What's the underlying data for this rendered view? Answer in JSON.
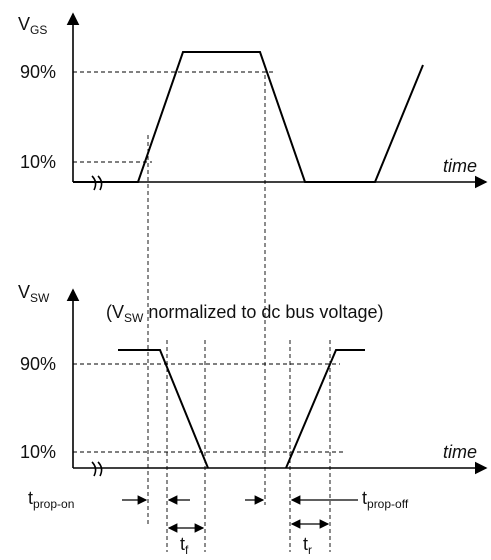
{
  "top_plot": {
    "y_label": {
      "main": "V",
      "sub": "GS"
    },
    "levels": [
      "90%",
      "10%"
    ],
    "x_label": "time"
  },
  "bottom_plot": {
    "y_label": {
      "main": "V",
      "sub": "SW"
    },
    "note": {
      "open": "(V",
      "sub": "SW",
      "rest": " normalized to dc bus voltage)"
    },
    "levels": [
      "90%",
      "10%"
    ],
    "x_label": "time"
  },
  "intervals": [
    {
      "main": "t",
      "sub": "prop-on"
    },
    {
      "main": "t",
      "sub": "f"
    },
    {
      "main": "t",
      "sub": "r"
    },
    {
      "main": "t",
      "sub": "prop-off"
    }
  ]
}
